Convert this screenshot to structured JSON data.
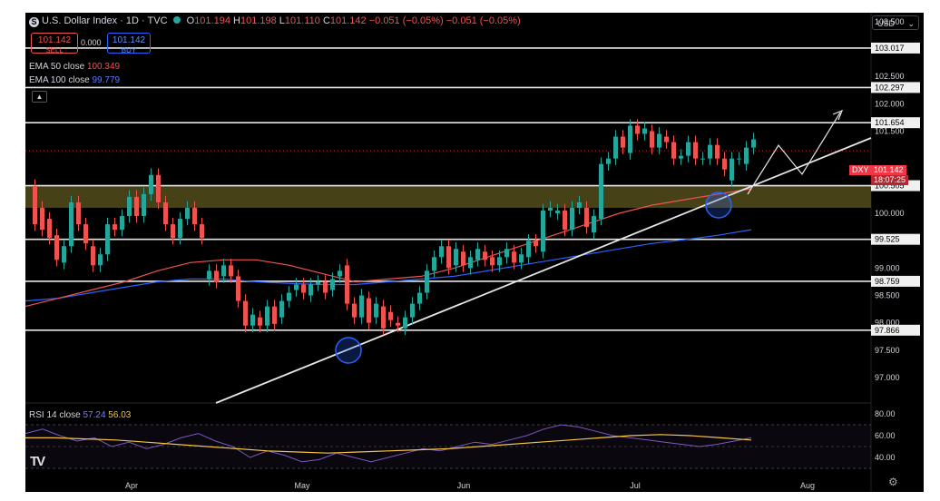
{
  "header": {
    "symbol_icon": "S",
    "title": "U.S. Dollar Index · 1D · TVC",
    "ohlc": [
      {
        "k": "O",
        "v": "101.194"
      },
      {
        "k": "H",
        "v": "101.198"
      },
      {
        "k": "L",
        "v": "101.110"
      },
      {
        "k": "C",
        "v": "101.142"
      }
    ],
    "change": "−0.051 (−0.05%)",
    "change2": "−0.051 (−0.05%)",
    "sell_price": "101.142",
    "sell_label": "SELL",
    "spread": "0.000",
    "buy_price": "101.142",
    "buy_label": "BUY",
    "currency": "USD"
  },
  "indicators": {
    "ema50": {
      "name": "EMA 50 close",
      "value": "100.349",
      "color": "#ef5350"
    },
    "ema100": {
      "name": "EMA 100 close",
      "value": "99.779",
      "color": "#2962ff"
    },
    "collapse_icon": "chevron-up-icon"
  },
  "rsi": {
    "name": "RSI 14 close",
    "value": "57.24",
    "ma_value": "56.03",
    "rsi_color": "#7e57c2",
    "ma_color": "#f5c542",
    "ticks": [
      "80.00",
      "60.00",
      "40.00"
    ]
  },
  "price_badge": {
    "symbol": "DXY",
    "price": "101.142",
    "countdown": "18:07:25",
    "color": "#f23645"
  },
  "logo": "TV",
  "chart_data": {
    "type": "candlestick",
    "title": "U.S. Dollar Index · 1D · TVC",
    "y_ticks": [
      "103.500",
      "102.500",
      "102.000",
      "101.500",
      "100.000",
      "99.000",
      "98.500",
      "98.000",
      "97.500",
      "97.000"
    ],
    "x_ticks": [
      "Apr",
      "May",
      "Jun",
      "Jul",
      "Aug"
    ],
    "ylim": [
      96.8,
      103.9
    ],
    "horizontal_levels": [
      "103.017",
      "102.297",
      "101.654",
      "100.505",
      "99.525",
      "98.759",
      "97.866"
    ],
    "zone": [
      100.1,
      100.5
    ],
    "candles": [
      [
        100.5,
        99.8
      ],
      [
        100.1,
        99.7
      ],
      [
        99.9,
        99.55
      ],
      [
        99.6,
        99.15
      ],
      [
        99.1,
        99.4
      ],
      [
        99.4,
        100.2
      ],
      [
        100.2,
        99.8
      ],
      [
        99.8,
        99.45
      ],
      [
        99.4,
        99.05
      ],
      [
        99.05,
        99.25
      ],
      [
        99.25,
        99.8
      ],
      [
        99.8,
        99.7
      ],
      [
        99.7,
        99.95
      ],
      [
        99.95,
        100.3
      ],
      [
        100.3,
        99.95
      ],
      [
        99.95,
        100.35
      ],
      [
        100.35,
        100.7
      ],
      [
        100.7,
        100.2
      ],
      [
        100.2,
        99.8
      ],
      [
        99.8,
        99.55
      ],
      [
        99.55,
        99.9
      ],
      [
        99.9,
        100.1
      ],
      [
        100.1,
        99.8
      ],
      [
        99.8,
        99.55
      ],
      [
        98.8,
        98.95
      ],
      [
        98.95,
        98.75
      ],
      [
        98.85,
        99.05
      ],
      [
        99.05,
        98.85
      ],
      [
        98.85,
        98.4
      ],
      [
        98.4,
        97.95
      ],
      [
        97.95,
        98.15
      ],
      [
        98.1,
        97.95
      ],
      [
        97.95,
        98.3
      ],
      [
        98.3,
        97.98
      ],
      [
        98.1,
        98.4
      ],
      [
        98.4,
        98.55
      ],
      [
        98.6,
        98.7
      ],
      [
        98.7,
        98.55
      ],
      [
        98.5,
        98.7
      ],
      [
        98.7,
        98.75
      ],
      [
        98.75,
        98.55
      ],
      [
        98.6,
        98.8
      ],
      [
        98.85,
        98.95
      ],
      [
        99.05,
        98.35
      ],
      [
        98.35,
        98.1
      ],
      [
        98.1,
        98.5
      ],
      [
        98.45,
        98.0
      ],
      [
        98.1,
        98.35
      ],
      [
        98.3,
        97.9
      ],
      [
        98.2,
        98.05
      ],
      [
        98.0,
        97.95
      ],
      [
        97.9,
        98.1
      ],
      [
        98.1,
        98.35
      ],
      [
        98.35,
        98.55
      ],
      [
        98.55,
        98.95
      ],
      [
        98.95,
        99.2
      ],
      [
        99.2,
        99.4
      ],
      [
        99.4,
        99.0
      ],
      [
        99.05,
        99.35
      ],
      [
        99.3,
        99.05
      ],
      [
        99.0,
        99.2
      ],
      [
        99.15,
        99.35
      ],
      [
        99.3,
        99.15
      ],
      [
        99.2,
        99.05
      ],
      [
        99.05,
        99.2
      ],
      [
        99.2,
        99.35
      ],
      [
        99.3,
        99.1
      ],
      [
        99.1,
        99.25
      ],
      [
        99.2,
        99.5
      ],
      [
        99.5,
        99.4
      ],
      [
        99.3,
        100.05
      ],
      [
        100.05,
        100.1
      ],
      [
        100.0,
        100.05
      ],
      [
        100.05,
        99.7
      ],
      [
        99.7,
        100.1
      ],
      [
        100.1,
        100.2
      ],
      [
        100.1,
        99.75
      ],
      [
        99.65,
        99.95
      ],
      [
        99.9,
        100.9
      ],
      [
        100.9,
        101.0
      ],
      [
        101.0,
        101.4
      ],
      [
        101.4,
        101.2
      ],
      [
        101.1,
        101.6
      ],
      [
        101.6,
        101.45
      ],
      [
        101.45,
        101.55
      ],
      [
        101.5,
        101.2
      ],
      [
        101.2,
        101.45
      ],
      [
        101.4,
        101.3
      ],
      [
        101.3,
        101.0
      ],
      [
        101.0,
        101.05
      ],
      [
        101.05,
        101.3
      ],
      [
        101.3,
        101.0
      ],
      [
        101.0,
        101.0
      ],
      [
        101.0,
        101.25
      ],
      [
        101.25,
        101.0
      ],
      [
        101.0,
        100.8
      ],
      [
        100.6,
        101.0
      ],
      [
        101.0,
        101.0
      ],
      [
        100.9,
        101.2
      ],
      [
        101.2,
        101.35
      ]
    ],
    "ema50_values": [
      98.3,
      98.45,
      98.6,
      98.75,
      98.95,
      99.1,
      99.15,
      99.15,
      99.05,
      98.9,
      98.75,
      98.8,
      98.85,
      99.0,
      99.2,
      99.4,
      99.6,
      99.8,
      100.0,
      100.15,
      100.25,
      100.35,
      100.45
    ],
    "ema100_values": [
      98.4,
      98.45,
      98.55,
      98.65,
      98.75,
      98.8,
      98.8,
      98.75,
      98.72,
      98.7,
      98.7,
      98.75,
      98.8,
      98.85,
      98.95,
      99.05,
      99.15,
      99.25,
      99.35,
      99.45,
      99.52,
      99.6,
      99.7
    ],
    "rsi_values": [
      62,
      66,
      60,
      55,
      58,
      50,
      54,
      48,
      52,
      58,
      62,
      55,
      50,
      40,
      46,
      42,
      36,
      38,
      44,
      40,
      36,
      40,
      44,
      48,
      46,
      50,
      54,
      52,
      56,
      60,
      66,
      70,
      68,
      64,
      60,
      58,
      56,
      54,
      52,
      50,
      52,
      55,
      58
    ],
    "rsi_ma_values": [
      58,
      58,
      57,
      56,
      54,
      52,
      50,
      48,
      46,
      45,
      44,
      45,
      46,
      47,
      48,
      50,
      52,
      54,
      56,
      58,
      60,
      61,
      60,
      58,
      56
    ]
  }
}
